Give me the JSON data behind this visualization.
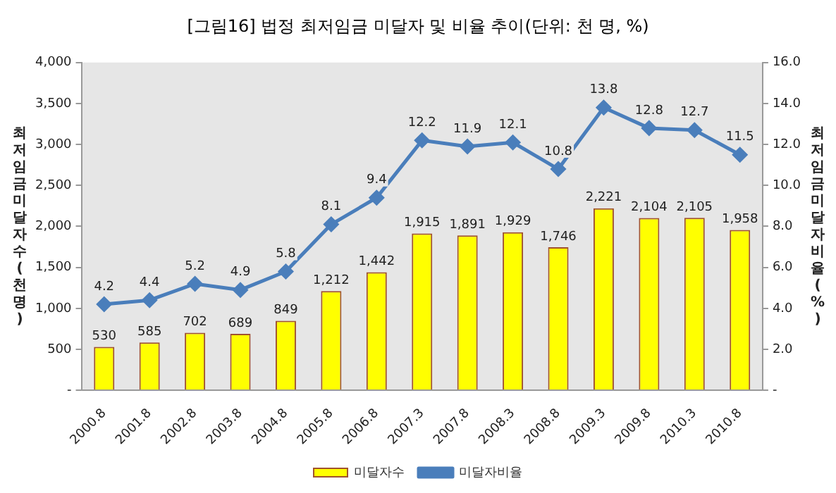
{
  "chart_data": {
    "type": "bar",
    "title": "[그림16] 법정 최저임금 미달자 및 비율 추이(단위: 천 명, %)",
    "categories": [
      "2000.8",
      "2001.8",
      "2002.8",
      "2003.8",
      "2004.8",
      "2005.8",
      "2006.8",
      "2007.3",
      "2007.8",
      "2008.3",
      "2008.8",
      "2009.3",
      "2009.8",
      "2010.3",
      "2010.8"
    ],
    "series": [
      {
        "name": "미달자수",
        "color": "#ffff00",
        "values": [
          530,
          585,
          702,
          689,
          849,
          1212,
          1442,
          1915,
          1891,
          1929,
          1746,
          2221,
          2104,
          2105,
          1958
        ],
        "value_labels": [
          "530",
          "585",
          "702",
          "689",
          "849",
          "1,212",
          "1,442",
          "1,915",
          "1,891",
          "1,929",
          "1,746",
          "2,221",
          "2,104",
          "2,105",
          "1,958"
        ]
      },
      {
        "name": "미달자비율",
        "type": "line",
        "axis": "y2",
        "color": "#4a7ebb",
        "marker": "diamond",
        "values": [
          4.2,
          4.4,
          5.2,
          4.9,
          5.8,
          8.1,
          9.4,
          12.2,
          11.9,
          12.1,
          10.8,
          13.8,
          12.8,
          12.7,
          11.5
        ],
        "value_labels": [
          "4.2",
          "4.4",
          "5.2",
          "4.9",
          "5.8",
          "8.1",
          "9.4",
          "12.2",
          "11.9",
          "12.1",
          "10.8",
          "13.8",
          "12.8",
          "12.7",
          "11.5"
        ]
      }
    ],
    "ylabel": "최저임금미달자수(천명)",
    "y2label": "최저임금미달자비율(%)",
    "ylim": [
      0,
      4000
    ],
    "yticks": [
      {
        "value": 0,
        "label": "-"
      },
      500,
      {
        "value": 1000,
        "label": "1,000"
      },
      {
        "value": 1500,
        "label": "1,500"
      },
      {
        "value": 2000,
        "label": "2,000"
      },
      {
        "value": 2500,
        "label": "2,500"
      },
      {
        "value": 3000,
        "label": "3,000"
      },
      {
        "value": 3500,
        "label": "3,500"
      },
      {
        "value": 4000,
        "label": "4,000"
      }
    ],
    "y2lim": [
      0,
      16
    ],
    "y2ticks": [
      {
        "value": 0,
        "label": "-"
      },
      {
        "value": 2,
        "label": "2.0"
      },
      {
        "value": 4,
        "label": "4.0"
      },
      {
        "value": 6,
        "label": "6.0"
      },
      {
        "value": 8,
        "label": "8.0"
      },
      {
        "value": 10,
        "label": "10.0"
      },
      {
        "value": 12,
        "label": "12.0"
      },
      {
        "value": 14,
        "label": "14.0"
      },
      {
        "value": 16,
        "label": "16.0"
      }
    ],
    "grid": false,
    "legend": "bottom"
  }
}
